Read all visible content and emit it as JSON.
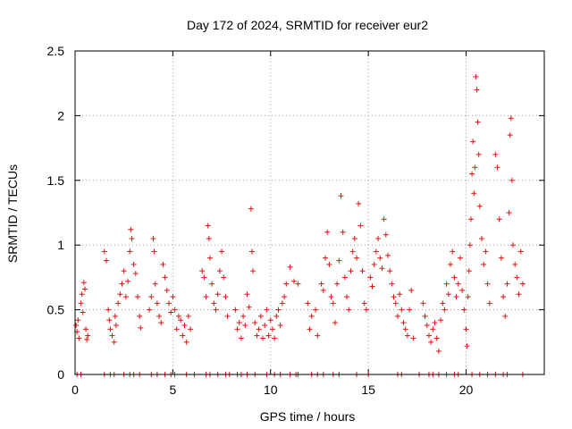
{
  "chart_data": {
    "type": "scatter",
    "title": "Day 172 of 2024, SRMTID for receiver eur2",
    "xlabel": "GPS time / hours",
    "ylabel": "SRMTID / TECUs",
    "xlim": [
      0,
      24
    ],
    "ylim": [
      0,
      2.5
    ],
    "x_ticks": [
      0,
      5,
      10,
      15,
      20
    ],
    "x_tick_labels": [
      "0",
      "5",
      "10",
      "15",
      "20"
    ],
    "y_ticks": [
      0,
      0.5,
      1,
      1.5,
      2,
      2.5
    ],
    "y_tick_labels": [
      "0",
      "0.5",
      "1",
      "1.5",
      "2",
      "2.5"
    ],
    "grid": true,
    "marker": "plus",
    "color": "#e01010",
    "series": [
      {
        "name": "SRMTID",
        "points": [
          [
            0.05,
            0.38
          ],
          [
            0.1,
            0.33
          ],
          [
            0.15,
            0.42
          ],
          [
            0.2,
            0.28
          ],
          [
            0.3,
            0.55
          ],
          [
            0.35,
            0.62
          ],
          [
            0.4,
            0.48
          ],
          [
            0.45,
            0.71
          ],
          [
            0.5,
            0.66
          ],
          [
            0.55,
            0.35
          ],
          [
            0.6,
            0.27
          ],
          [
            0.65,
            0.3
          ],
          [
            1.5,
            0.95
          ],
          [
            1.6,
            0.88
          ],
          [
            1.7,
            0.5
          ],
          [
            1.75,
            0.42
          ],
          [
            1.8,
            0.35
          ],
          [
            1.9,
            0.3
          ],
          [
            2.0,
            0.25
          ],
          [
            2.05,
            0.45
          ],
          [
            2.1,
            0.38
          ],
          [
            2.2,
            0.55
          ],
          [
            2.3,
            0.62
          ],
          [
            2.4,
            0.7
          ],
          [
            2.5,
            0.8
          ],
          [
            2.6,
            0.6
          ],
          [
            2.7,
            0.72
          ],
          [
            2.8,
            0.95
          ],
          [
            2.85,
            1.12
          ],
          [
            2.9,
            1.05
          ],
          [
            3.0,
            0.85
          ],
          [
            3.1,
            0.78
          ],
          [
            3.2,
            0.6
          ],
          [
            3.3,
            0.45
          ],
          [
            3.35,
            0.36
          ],
          [
            3.8,
            0.5
          ],
          [
            3.9,
            0.6
          ],
          [
            4.0,
            1.05
          ],
          [
            4.05,
            0.95
          ],
          [
            4.1,
            0.7
          ],
          [
            4.2,
            0.55
          ],
          [
            4.3,
            0.45
          ],
          [
            4.4,
            0.4
          ],
          [
            4.5,
            0.85
          ],
          [
            4.6,
            0.75
          ],
          [
            4.7,
            0.65
          ],
          [
            4.8,
            0.55
          ],
          [
            4.9,
            0.48
          ],
          [
            5.0,
            0.6
          ],
          [
            5.1,
            0.5
          ],
          [
            5.2,
            0.35
          ],
          [
            5.3,
            0.45
          ],
          [
            5.4,
            0.42
          ],
          [
            5.5,
            0.3
          ],
          [
            5.6,
            0.38
          ],
          [
            5.7,
            0.25
          ],
          [
            5.8,
            0.45
          ],
          [
            5.9,
            0.35
          ],
          [
            6.5,
            0.8
          ],
          [
            6.6,
            0.75
          ],
          [
            6.7,
            0.6
          ],
          [
            6.8,
            1.15
          ],
          [
            6.85,
            1.05
          ],
          [
            6.9,
            0.9
          ],
          [
            7.0,
            0.7
          ],
          [
            7.1,
            0.55
          ],
          [
            7.2,
            0.5
          ],
          [
            7.3,
            0.62
          ],
          [
            7.4,
            0.8
          ],
          [
            7.5,
            0.95
          ],
          [
            7.6,
            0.75
          ],
          [
            7.7,
            0.6
          ],
          [
            7.8,
            0.45
          ],
          [
            8.2,
            0.5
          ],
          [
            8.3,
            0.35
          ],
          [
            8.4,
            0.4
          ],
          [
            8.5,
            0.28
          ],
          [
            8.6,
            0.45
          ],
          [
            8.7,
            0.38
          ],
          [
            8.8,
            0.62
          ],
          [
            8.9,
            0.52
          ],
          [
            9.0,
            1.28
          ],
          [
            9.05,
            0.95
          ],
          [
            9.1,
            0.8
          ],
          [
            9.2,
            0.4
          ],
          [
            9.3,
            0.3
          ],
          [
            9.4,
            0.35
          ],
          [
            9.5,
            0.45
          ],
          [
            9.6,
            0.28
          ],
          [
            9.7,
            0.38
          ],
          [
            9.8,
            0.5
          ],
          [
            9.9,
            0.3
          ],
          [
            10.0,
            0.42
          ],
          [
            10.1,
            0.35
          ],
          [
            10.2,
            0.28
          ],
          [
            10.3,
            0.45
          ],
          [
            10.4,
            0.5
          ],
          [
            10.5,
            0.38
          ],
          [
            10.6,
            0.55
          ],
          [
            10.7,
            0.6
          ],
          [
            10.8,
            0.7
          ],
          [
            11.0,
            0.83
          ],
          [
            11.2,
            0.72
          ],
          [
            11.4,
            0.7
          ],
          [
            11.9,
            0.55
          ],
          [
            12.0,
            0.35
          ],
          [
            12.1,
            0.45
          ],
          [
            12.3,
            0.5
          ],
          [
            12.4,
            0.3
          ],
          [
            12.6,
            0.7
          ],
          [
            12.7,
            0.65
          ],
          [
            12.8,
            0.9
          ],
          [
            12.9,
            1.1
          ],
          [
            13.0,
            0.85
          ],
          [
            13.1,
            0.6
          ],
          [
            13.2,
            0.55
          ],
          [
            13.3,
            0.4
          ],
          [
            13.4,
            0.7
          ],
          [
            13.5,
            0.88
          ],
          [
            13.6,
            1.38
          ],
          [
            13.7,
            1.1
          ],
          [
            13.8,
            0.75
          ],
          [
            13.9,
            0.6
          ],
          [
            14.0,
            0.5
          ],
          [
            14.1,
            0.8
          ],
          [
            14.2,
            0.95
          ],
          [
            14.3,
            1.05
          ],
          [
            14.4,
            0.9
          ],
          [
            14.5,
            1.32
          ],
          [
            14.6,
            1.15
          ],
          [
            14.7,
            0.8
          ],
          [
            14.8,
            0.55
          ],
          [
            14.9,
            0.5
          ],
          [
            15.1,
            0.75
          ],
          [
            15.2,
            0.68
          ],
          [
            15.3,
            0.85
          ],
          [
            15.4,
            0.95
          ],
          [
            15.5,
            1.05
          ],
          [
            15.6,
            0.9
          ],
          [
            15.7,
            0.82
          ],
          [
            15.8,
            1.2
          ],
          [
            15.9,
            1.08
          ],
          [
            16.0,
            0.92
          ],
          [
            16.1,
            0.8
          ],
          [
            16.2,
            0.7
          ],
          [
            16.3,
            0.6
          ],
          [
            16.4,
            0.55
          ],
          [
            16.5,
            0.45
          ],
          [
            16.6,
            0.62
          ],
          [
            16.7,
            0.5
          ],
          [
            16.8,
            0.4
          ],
          [
            16.9,
            0.35
          ],
          [
            17.0,
            0.3
          ],
          [
            17.1,
            0.5
          ],
          [
            17.2,
            0.65
          ],
          [
            17.3,
            0.28
          ],
          [
            17.8,
            0.55
          ],
          [
            17.9,
            0.45
          ],
          [
            18.0,
            0.38
          ],
          [
            18.1,
            0.3
          ],
          [
            18.2,
            0.25
          ],
          [
            18.3,
            0.35
          ],
          [
            18.4,
            0.4
          ],
          [
            18.5,
            0.28
          ],
          [
            18.6,
            0.18
          ],
          [
            18.7,
            0.42
          ],
          [
            18.8,
            0.55
          ],
          [
            18.9,
            0.5
          ],
          [
            19.0,
            0.7
          ],
          [
            19.1,
            0.62
          ],
          [
            19.2,
            0.85
          ],
          [
            19.3,
            0.95
          ],
          [
            19.4,
            0.75
          ],
          [
            19.5,
            0.6
          ],
          [
            19.6,
            0.7
          ],
          [
            19.7,
            0.9
          ],
          [
            19.8,
            0.65
          ],
          [
            19.9,
            0.5
          ],
          [
            20.0,
            0.35
          ],
          [
            20.05,
            0.22
          ],
          [
            20.1,
            0.6
          ],
          [
            20.15,
            0.8
          ],
          [
            20.2,
            1.0
          ],
          [
            20.25,
            1.2
          ],
          [
            20.3,
            1.55
          ],
          [
            20.35,
            1.8
          ],
          [
            20.4,
            1.4
          ],
          [
            20.45,
            1.6
          ],
          [
            20.5,
            2.3
          ],
          [
            20.55,
            2.2
          ],
          [
            20.6,
            1.95
          ],
          [
            20.65,
            1.7
          ],
          [
            20.7,
            1.3
          ],
          [
            20.8,
            1.05
          ],
          [
            20.9,
            0.85
          ],
          [
            21.0,
            0.95
          ],
          [
            21.1,
            0.7
          ],
          [
            21.2,
            0.55
          ],
          [
            21.5,
            1.7
          ],
          [
            21.6,
            1.6
          ],
          [
            21.7,
            1.2
          ],
          [
            21.8,
            0.9
          ],
          [
            21.9,
            0.6
          ],
          [
            22.0,
            0.45
          ],
          [
            22.1,
            0.7
          ],
          [
            22.2,
            1.25
          ],
          [
            22.25,
            1.85
          ],
          [
            22.3,
            1.98
          ],
          [
            22.35,
            1.5
          ],
          [
            22.4,
            1.0
          ],
          [
            22.5,
            0.85
          ],
          [
            22.6,
            0.75
          ],
          [
            22.7,
            0.62
          ],
          [
            22.8,
            0.95
          ],
          [
            22.9,
            0.7
          ]
        ]
      }
    ],
    "zero_markers_x": [
      0.1,
      0.3,
      1.5,
      1.8,
      2.0,
      2.5,
      2.8,
      3.0,
      3.3,
      3.9,
      4.2,
      4.6,
      4.9,
      5.1,
      5.7,
      6.1,
      6.7,
      6.9,
      7.3,
      7.7,
      7.9,
      8.3,
      8.5,
      8.8,
      9.2,
      9.8,
      10.2,
      10.5,
      11.0,
      11.3,
      11.4,
      12.1,
      12.4,
      12.7,
      13.2,
      13.5,
      14.4,
      15.0,
      16.5,
      16.7,
      17.6,
      18.1,
      18.3,
      18.6,
      19.0,
      19.4,
      19.6,
      20.3,
      20.7,
      21.1,
      21.5,
      21.9,
      22.1,
      22.9
    ]
  }
}
